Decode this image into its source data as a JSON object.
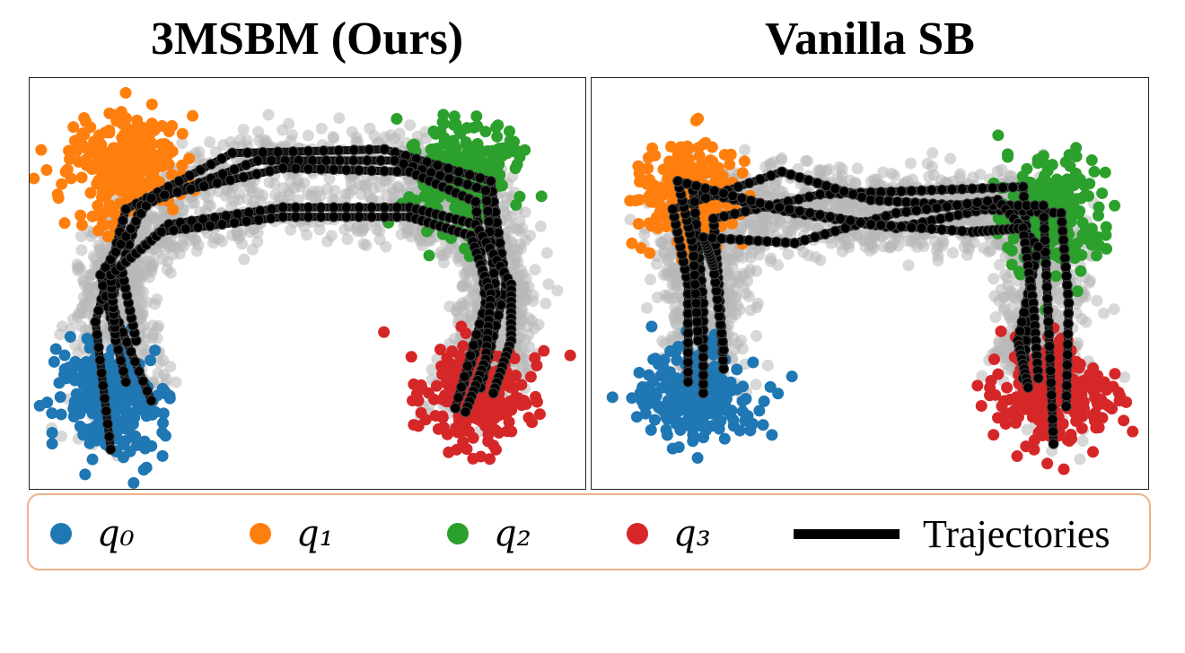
{
  "panels": {
    "left_title": "3MSBM (Ours)",
    "right_title": "Vanilla SB"
  },
  "legend": {
    "items": [
      {
        "label": "q₀",
        "color": "#1f77b4",
        "kind": "dot"
      },
      {
        "label": "q₁",
        "color": "#ff7f0e",
        "kind": "dot"
      },
      {
        "label": "q₂",
        "color": "#2ca02c",
        "kind": "dot"
      },
      {
        "label": "q₃",
        "color": "#d62728",
        "kind": "dot"
      },
      {
        "label": "Trajectories",
        "color": "#000000",
        "kind": "line"
      }
    ],
    "border_color": "#f0b089"
  },
  "chart_data": [
    {
      "type": "scatter",
      "title": "3MSBM (Ours)",
      "xlabel": "",
      "ylabel": "",
      "axes_ticks": false,
      "grid": false,
      "xlim": [
        -1.1,
        1.1
      ],
      "ylim": [
        -1.1,
        1.1
      ],
      "clusters": [
        {
          "name": "q₀",
          "color": "#1f77b4",
          "center": [
            -0.78,
            -0.6
          ],
          "spread": [
            0.1,
            0.16
          ]
        },
        {
          "name": "q₁",
          "color": "#ff7f0e",
          "center": [
            -0.72,
            0.62
          ],
          "spread": [
            0.11,
            0.14
          ]
        },
        {
          "name": "q₂",
          "color": "#2ca02c",
          "center": [
            0.6,
            0.58
          ],
          "spread": [
            0.11,
            0.14
          ]
        },
        {
          "name": "q₃",
          "color": "#d62728",
          "center": [
            0.66,
            -0.58
          ],
          "spread": [
            0.11,
            0.14
          ]
        }
      ],
      "background_samples": {
        "color": "#b8b8b8",
        "description": "intermediate samples along arch"
      },
      "trajectories": [
        {
          "path": [
            [
              -0.78,
              -0.88
            ],
            [
              -0.84,
              -0.2
            ],
            [
              -0.72,
              0.4
            ],
            [
              -0.3,
              0.7
            ],
            [
              0.3,
              0.72
            ],
            [
              0.72,
              0.55
            ],
            [
              0.78,
              0.0
            ],
            [
              0.68,
              -0.55
            ]
          ]
        },
        {
          "path": [
            [
              -0.62,
              -0.62
            ],
            [
              -0.78,
              -0.1
            ],
            [
              -0.66,
              0.42
            ],
            [
              -0.2,
              0.66
            ],
            [
              0.34,
              0.66
            ],
            [
              0.7,
              0.5
            ],
            [
              0.74,
              -0.05
            ],
            [
              0.6,
              -0.58
            ]
          ]
        },
        {
          "path": [
            [
              -0.72,
              -0.52
            ],
            [
              -0.82,
              0.05
            ],
            [
              -0.62,
              0.46
            ],
            [
              -0.1,
              0.62
            ],
            [
              0.4,
              0.6
            ],
            [
              0.66,
              0.44
            ],
            [
              0.7,
              -0.1
            ],
            [
              0.58,
              -0.66
            ]
          ]
        },
        {
          "path": [
            [
              -0.68,
              -0.3
            ],
            [
              -0.74,
              0.1
            ],
            [
              -0.55,
              0.32
            ],
            [
              -0.1,
              0.41
            ],
            [
              0.4,
              0.41
            ],
            [
              0.66,
              0.32
            ],
            [
              0.8,
              0.0
            ],
            [
              0.8,
              -0.3
            ],
            [
              0.73,
              -0.58
            ]
          ]
        },
        {
          "path": [
            [
              -0.76,
              -0.3
            ],
            [
              -0.78,
              0.05
            ],
            [
              -0.58,
              0.28
            ],
            [
              -0.1,
              0.36
            ],
            [
              0.4,
              0.36
            ],
            [
              0.64,
              0.26
            ],
            [
              0.72,
              -0.05
            ],
            [
              0.7,
              -0.4
            ],
            [
              0.62,
              -0.68
            ]
          ]
        }
      ]
    },
    {
      "type": "scatter",
      "title": "Vanilla SB",
      "xlabel": "",
      "ylabel": "",
      "axes_ticks": false,
      "grid": false,
      "xlim": [
        -1.1,
        1.1
      ],
      "ylim": [
        -1.1,
        1.1
      ],
      "clusters": [
        {
          "name": "q₀",
          "color": "#1f77b4",
          "center": [
            -0.7,
            -0.58
          ],
          "spread": [
            0.12,
            0.14
          ]
        },
        {
          "name": "q₁",
          "color": "#ff7f0e",
          "center": [
            -0.72,
            0.45
          ],
          "spread": [
            0.1,
            0.16
          ]
        },
        {
          "name": "q₂",
          "color": "#2ca02c",
          "center": [
            0.72,
            0.38
          ],
          "spread": [
            0.1,
            0.15
          ]
        },
        {
          "name": "q₃",
          "color": "#d62728",
          "center": [
            0.72,
            -0.58
          ],
          "spread": [
            0.11,
            0.14
          ]
        }
      ],
      "background_samples": {
        "color": "#b8b8b8",
        "description": "intermediate samples"
      },
      "trajectories": [
        {
          "path": [
            [
              -0.58,
              -0.45
            ],
            [
              -0.6,
              0.0
            ],
            [
              -0.62,
              0.35
            ],
            [
              -0.2,
              0.48
            ],
            [
              0.2,
              0.5
            ],
            [
              0.6,
              0.52
            ],
            [
              0.63,
              0.0
            ],
            [
              0.6,
              -0.5
            ]
          ]
        },
        {
          "path": [
            [
              -0.66,
              -0.58
            ],
            [
              -0.66,
              -0.1
            ],
            [
              -0.7,
              0.5
            ],
            [
              -0.3,
              0.38
            ],
            [
              0.1,
              0.3
            ],
            [
              0.45,
              0.4
            ],
            [
              0.75,
              0.38
            ],
            [
              0.78,
              -0.1
            ],
            [
              0.77,
              -0.65
            ]
          ]
        },
        {
          "path": [
            [
              -0.72,
              -0.52
            ],
            [
              -0.72,
              0.0
            ],
            [
              -0.78,
              0.4
            ],
            [
              -0.35,
              0.6
            ],
            [
              0.0,
              0.45
            ],
            [
              0.35,
              0.42
            ],
            [
              0.68,
              0.42
            ],
            [
              0.7,
              -0.2
            ],
            [
              0.72,
              -0.85
            ]
          ]
        },
        {
          "path": [
            [
              -0.58,
              -0.35
            ],
            [
              -0.62,
              0.1
            ],
            [
              -0.66,
              0.25
            ],
            [
              -0.3,
              0.22
            ],
            [
              0.1,
              0.38
            ],
            [
              0.5,
              0.45
            ],
            [
              0.66,
              0.2
            ],
            [
              0.58,
              -0.3
            ],
            [
              0.62,
              -0.55
            ]
          ]
        },
        {
          "path": [
            [
              -0.68,
              -0.3
            ],
            [
              -0.7,
              0.2
            ],
            [
              -0.76,
              0.55
            ],
            [
              -0.4,
              0.42
            ],
            [
              0.0,
              0.32
            ],
            [
              0.4,
              0.28
            ],
            [
              0.6,
              0.3
            ],
            [
              0.64,
              -0.1
            ],
            [
              0.66,
              -0.5
            ]
          ]
        }
      ]
    }
  ]
}
